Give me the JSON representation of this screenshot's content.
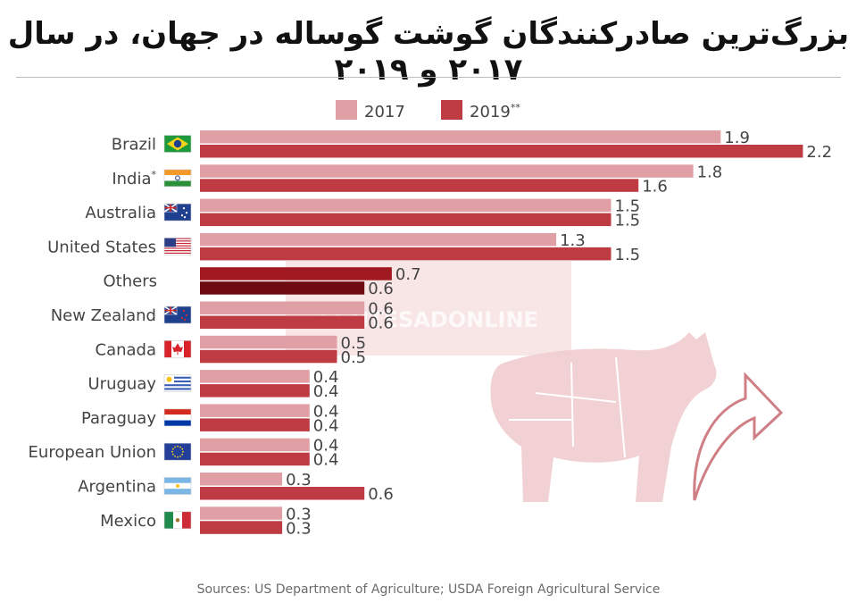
{
  "title": "بزرگ‌ترین صادرکنندگان گوشت گوساله در جهان، در سال ۲۰۱۷ و ۲۰۱۹",
  "source": "Sources: US Department of Agriculture; USDA Foreign Agricultural Service",
  "watermark": "EGHTESADONLINE",
  "colors": {
    "s2017": "#e09fa4",
    "s2019": "#bf3b44",
    "others2017": "#a11a22",
    "others2019": "#6e0a12",
    "text": "#444444",
    "cow": "#f0cfd1"
  },
  "chart_data": {
    "type": "bar",
    "orientation": "horizontal",
    "legend_position": "top",
    "series": [
      {
        "name": "2017",
        "values": [
          1.9,
          1.8,
          1.5,
          1.3,
          0.7,
          0.6,
          0.5,
          0.4,
          0.4,
          0.4,
          0.3,
          0.3
        ]
      },
      {
        "name": "2019**",
        "values": [
          2.2,
          1.6,
          1.5,
          1.5,
          0.6,
          0.6,
          0.5,
          0.4,
          0.4,
          0.4,
          0.6,
          0.3
        ]
      }
    ],
    "categories": [
      {
        "label": "Brazil",
        "flag": "brazil-flag-icon"
      },
      {
        "label": "India*",
        "flag": "india-flag-icon"
      },
      {
        "label": "Australia",
        "flag": "australia-flag-icon"
      },
      {
        "label": "United States",
        "flag": "usa-flag-icon"
      },
      {
        "label": "Others",
        "flag": ""
      },
      {
        "label": "New Zealand",
        "flag": "new-zealand-flag-icon"
      },
      {
        "label": "Canada",
        "flag": "canada-flag-icon"
      },
      {
        "label": "Uruguay",
        "flag": "uruguay-flag-icon"
      },
      {
        "label": "Paraguay",
        "flag": "paraguay-flag-icon"
      },
      {
        "label": "European Union",
        "flag": "eu-flag-icon"
      },
      {
        "label": "Argentina",
        "flag": "argentina-flag-icon"
      },
      {
        "label": "Mexico",
        "flag": "mexico-flag-icon"
      }
    ],
    "xlim": [
      0,
      2.2
    ],
    "grid": false
  }
}
